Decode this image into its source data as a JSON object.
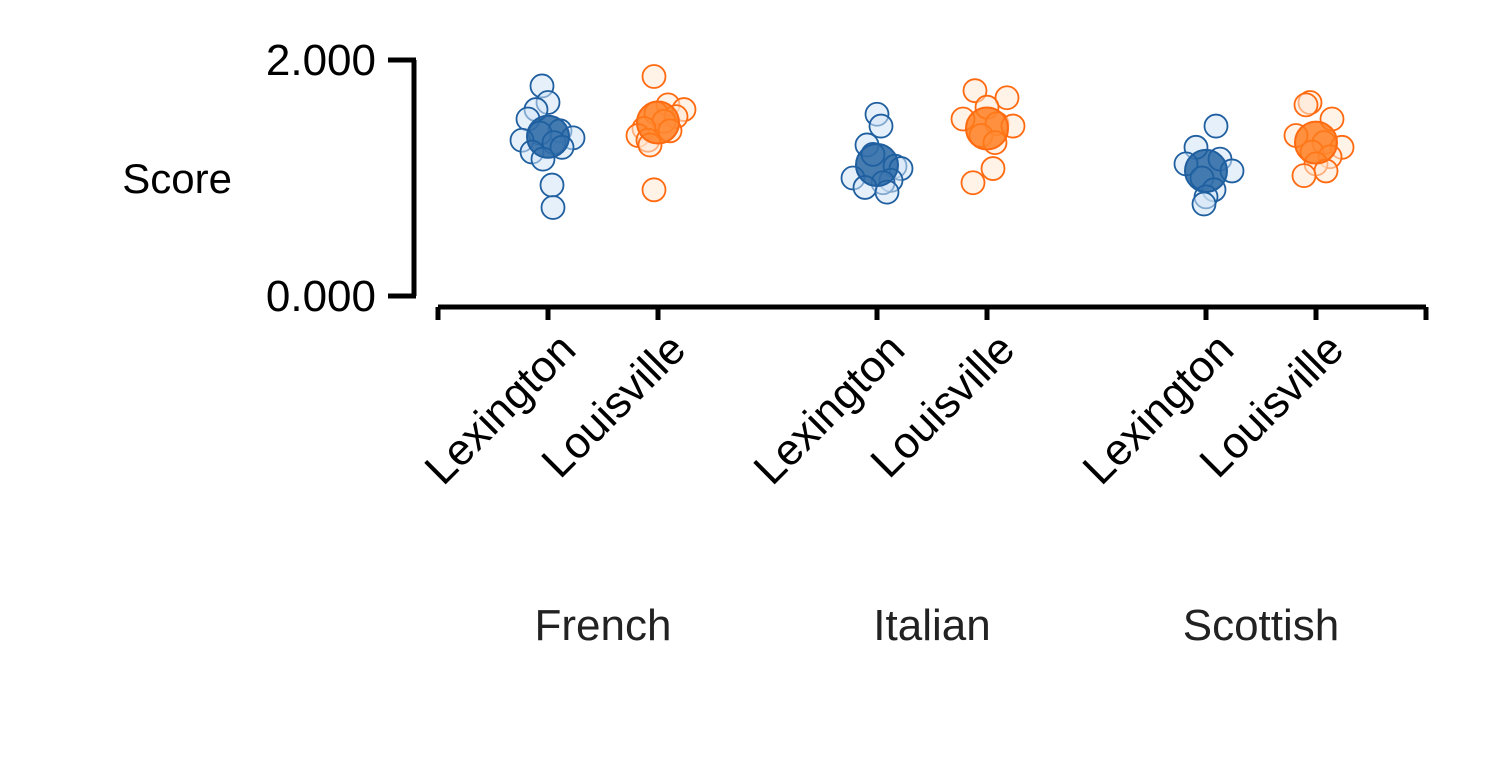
{
  "chart_data": {
    "type": "scatter",
    "ylabel": "Score",
    "ylim": [
      0,
      2
    ],
    "yticks": [
      "0.000",
      "2.000"
    ],
    "groups": [
      "French",
      "Italian",
      "Scottish"
    ],
    "categories": [
      "Lexington",
      "Louisville"
    ],
    "colors": {
      "Lexington": "#1f5fa0",
      "Louisville": "#ff6a10"
    },
    "series": [
      {
        "group": "French",
        "category": "Lexington",
        "mean": 1.35,
        "points": [
          1.78,
          1.64,
          1.58,
          1.5,
          1.4,
          1.38,
          1.34,
          1.32,
          1.3,
          1.26,
          1.22,
          1.16,
          0.94,
          0.75
        ],
        "jitter": [
          -6,
          0,
          -12,
          -20,
          12,
          -8,
          25,
          -26,
          6,
          14,
          -16,
          -5,
          4,
          5
        ]
      },
      {
        "group": "French",
        "category": "Louisville",
        "mean": 1.47,
        "points": [
          1.86,
          1.62,
          1.58,
          1.55,
          1.52,
          1.48,
          1.42,
          1.4,
          1.36,
          1.32,
          1.28,
          0.9
        ],
        "jitter": [
          -4,
          10,
          26,
          -2,
          18,
          6,
          -14,
          12,
          -20,
          -10,
          -8,
          -4
        ]
      },
      {
        "group": "Italian",
        "category": "Lexington",
        "mean": 1.11,
        "points": [
          1.54,
          1.44,
          1.28,
          1.2,
          1.1,
          1.08,
          1.0,
          0.98,
          0.96,
          0.92,
          0.88
        ],
        "jitter": [
          0,
          4,
          -10,
          -4,
          18,
          24,
          -24,
          14,
          6,
          -12,
          10
        ]
      },
      {
        "group": "Italian",
        "category": "Louisville",
        "mean": 1.42,
        "points": [
          1.74,
          1.68,
          1.6,
          1.5,
          1.46,
          1.44,
          1.36,
          1.3,
          1.08,
          0.96
        ],
        "jitter": [
          -12,
          20,
          0,
          -24,
          10,
          26,
          -6,
          8,
          6,
          -14
        ]
      },
      {
        "group": "Scottish",
        "category": "Lexington",
        "mean": 1.06,
        "points": [
          1.44,
          1.26,
          1.16,
          1.12,
          1.06,
          1.0,
          0.9,
          0.84,
          0.78
        ],
        "jitter": [
          10,
          -10,
          14,
          -20,
          26,
          -4,
          8,
          0,
          -2
        ]
      },
      {
        "group": "Scottish",
        "category": "Louisville",
        "mean": 1.3,
        "points": [
          1.64,
          1.62,
          1.5,
          1.36,
          1.3,
          1.26,
          1.22,
          1.18,
          1.12,
          1.06,
          1.02
        ],
        "jitter": [
          -6,
          -10,
          16,
          -20,
          8,
          26,
          -4,
          14,
          0,
          10,
          -12
        ]
      }
    ]
  }
}
